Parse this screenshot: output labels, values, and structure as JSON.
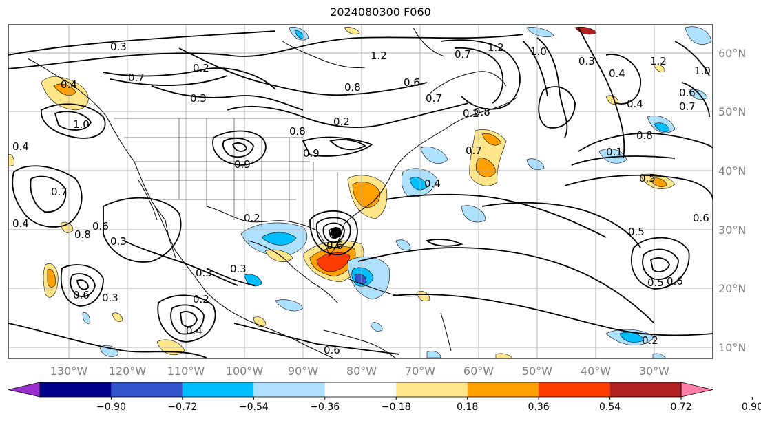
{
  "title": "2024080300 F060",
  "lon_labels": [
    "130°W",
    "120°W",
    "110°W",
    "100°W",
    "90°W",
    "80°W",
    "70°W",
    "60°W",
    "50°W",
    "40°W",
    "30°W"
  ],
  "lat_labels": [
    "60°N",
    "50°N",
    "40°N",
    "30°N",
    "20°N",
    "10°N"
  ],
  "colorbar": {
    "colors": [
      "#9b30d0",
      "#00008c",
      "#3355cc",
      "#00bfff",
      "#aee1ff",
      "#ffffff",
      "#ffe68a",
      "#ff9f00",
      "#ff3c00",
      "#b22222",
      "#ff7faa"
    ],
    "tick_labels": [
      "−0.90",
      "−0.72",
      "−0.54",
      "−0.36",
      "−0.18",
      "0.18",
      "0.36",
      "0.54",
      "0.72",
      "0.90"
    ]
  },
  "contour_labels": [
    "0.3",
    "1.2",
    "0.7",
    "1.2",
    "1.0",
    "0.3",
    "1.2",
    "1.0",
    "0.4",
    "0.7",
    "0.2",
    "0.3",
    "0.8",
    "0.6",
    "0.7",
    "0.8",
    "0.4",
    "1.0",
    "0.2",
    "0.8",
    "0.4",
    "0.9",
    "0.6",
    "0.4",
    "0.2",
    "0.9",
    "0.7",
    "0.1",
    "0.8",
    "0.4",
    "0.5",
    "0.4",
    "0.7",
    "0.8",
    "0.6",
    "0.3",
    "0.2",
    "0.3",
    "0.5",
    "0.6",
    "0.3",
    "0.2",
    "0.6",
    "0.6",
    "0.4",
    "0.5",
    "0.6",
    "0.7",
    "0.6",
    "0.2",
    "0.3"
  ]
}
